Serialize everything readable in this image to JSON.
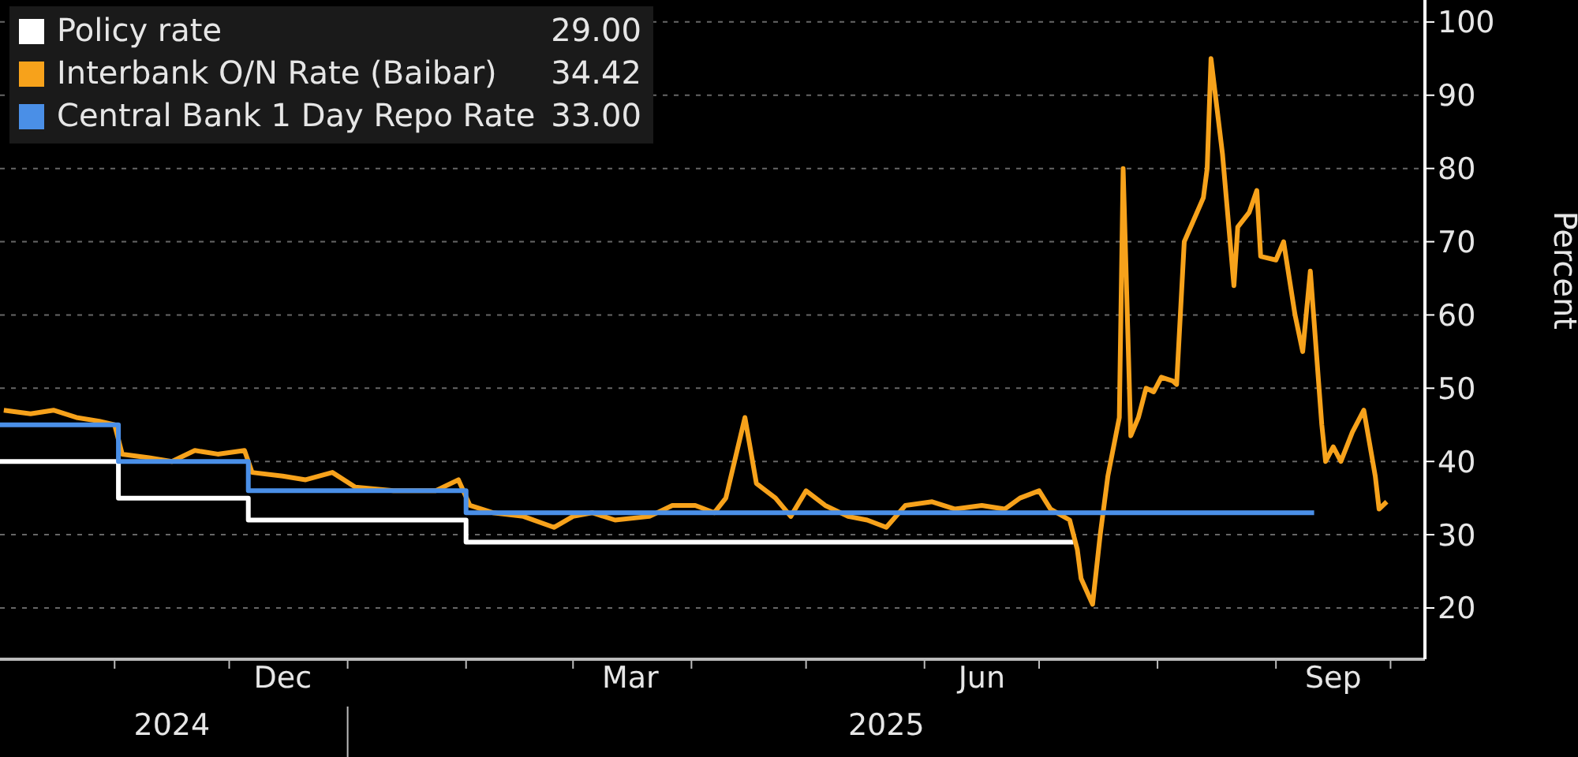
{
  "chart_data": {
    "type": "line",
    "ylabel": "Percent",
    "legend": "top left",
    "grid": "y",
    "line_style": "solid",
    "marker": "none",
    "xlim": [
      "2024-10-02",
      "2025-10-10"
    ],
    "xticks": [
      {
        "value": "2024-11-01",
        "label": null
      },
      {
        "value": "2024-12-01",
        "label": null
      },
      {
        "value": "2024-12-15",
        "label": "Dec"
      },
      {
        "value": "2025-01-01",
        "label": null
      },
      {
        "value": "2025-02-01",
        "label": null
      },
      {
        "value": "2025-03-01",
        "label": null
      },
      {
        "value": "2025-03-16",
        "label": "Mar"
      },
      {
        "value": "2025-04-01",
        "label": null
      },
      {
        "value": "2025-05-01",
        "label": null
      },
      {
        "value": "2025-06-01",
        "label": null
      },
      {
        "value": "2025-06-16",
        "label": "Jun"
      },
      {
        "value": "2025-07-01",
        "label": null
      },
      {
        "value": "2025-08-01",
        "label": null
      },
      {
        "value": "2025-09-01",
        "label": null
      },
      {
        "value": "2025-09-16",
        "label": "Sep"
      },
      {
        "value": "2025-10-01",
        "label": null
      }
    ],
    "x2lim": [
      "2024-10-02",
      "2025-10-10"
    ],
    "x2ticks": [
      {
        "value": "2024-11-16",
        "label": "2024"
      },
      {
        "value": "2025-01-01",
        "label": null
      },
      {
        "value": "2025-05-22",
        "label": "2025"
      }
    ],
    "ylim": [
      13,
      103
    ],
    "yticks": [
      20,
      30,
      40,
      50,
      60,
      70,
      80,
      90,
      100
    ],
    "series": [
      {
        "name": "Policy rate",
        "type": "step",
        "color": "#ffffff",
        "x": [
          "2024-10-02",
          "2024-11-02",
          "2024-12-06",
          "2025-02-01",
          "2025-07-10"
        ],
        "values": [
          40,
          35,
          32,
          29,
          29
        ]
      },
      {
        "name": "Interbank O/N Rate (Baibar)",
        "color": "#f7a21b",
        "x": [
          "2024-10-03",
          "2024-10-10",
          "2024-10-16",
          "2024-10-22",
          "2024-10-28",
          "2024-11-01",
          "2024-11-03",
          "2024-11-10",
          "2024-11-16",
          "2024-11-22",
          "2024-11-28",
          "2024-12-05",
          "2024-12-07",
          "2024-12-15",
          "2024-12-21",
          "2024-12-28",
          "2025-01-03",
          "2025-01-13",
          "2025-01-24",
          "2025-01-30",
          "2025-02-02",
          "2025-02-08",
          "2025-02-16",
          "2025-02-24",
          "2025-03-01",
          "2025-03-06",
          "2025-03-12",
          "2025-03-21",
          "2025-03-27",
          "2025-04-02",
          "2025-04-07",
          "2025-04-10",
          "2025-04-15",
          "2025-04-18",
          "2025-04-23",
          "2025-04-27",
          "2025-05-01",
          "2025-05-06",
          "2025-05-12",
          "2025-05-17",
          "2025-05-22",
          "2025-05-27",
          "2025-06-03",
          "2025-06-09",
          "2025-06-16",
          "2025-06-22",
          "2025-06-26",
          "2025-07-01",
          "2025-07-04",
          "2025-07-09",
          "2025-07-11",
          "2025-07-12",
          "2025-07-15",
          "2025-07-17",
          "2025-07-19",
          "2025-07-22",
          "2025-07-23",
          "2025-07-25",
          "2025-07-27",
          "2025-07-29",
          "2025-07-31",
          "2025-08-02",
          "2025-08-05",
          "2025-08-06",
          "2025-08-08",
          "2025-08-13",
          "2025-08-14",
          "2025-08-15",
          "2025-08-18",
          "2025-08-21",
          "2025-08-22",
          "2025-08-25",
          "2025-08-27",
          "2025-08-28",
          "2025-09-01",
          "2025-09-03",
          "2025-09-06",
          "2025-09-08",
          "2025-09-10",
          "2025-09-13",
          "2025-09-14",
          "2025-09-16",
          "2025-09-18",
          "2025-09-21",
          "2025-09-24",
          "2025-09-27",
          "2025-09-28",
          "2025-09-30"
        ],
        "values": [
          47,
          46.5,
          47,
          46,
          45.5,
          45,
          41,
          40.5,
          40,
          41.5,
          41,
          41.5,
          38.5,
          38,
          37.5,
          38.5,
          36.5,
          36,
          36,
          37.5,
          34,
          33,
          32.5,
          31,
          32.5,
          33,
          32,
          32.5,
          34,
          34,
          33,
          35,
          46,
          37,
          35,
          32.5,
          36,
          34,
          32.5,
          32,
          31,
          34,
          34.5,
          33.5,
          34,
          33.5,
          35,
          36,
          33.5,
          32,
          28,
          24,
          20.5,
          30,
          38,
          46,
          80,
          43.5,
          46,
          50,
          49.5,
          51.5,
          51,
          50.5,
          70,
          76,
          80,
          95,
          82,
          64,
          72,
          74,
          77,
          68,
          67.5,
          70,
          60,
          55,
          66,
          45,
          40,
          42,
          40,
          44,
          47,
          38,
          33.5,
          34.5
        ]
      },
      {
        "name": "Central Bank 1 Day Repo Rate",
        "type": "step",
        "color": "#4a8fe7",
        "x": [
          "2024-10-02",
          "2024-11-02",
          "2024-12-06",
          "2025-02-01",
          "2025-09-11"
        ],
        "values": [
          45,
          40,
          36,
          33,
          33
        ]
      }
    ],
    "annotations": [
      "29.00",
      "34.42",
      "33.00"
    ]
  }
}
